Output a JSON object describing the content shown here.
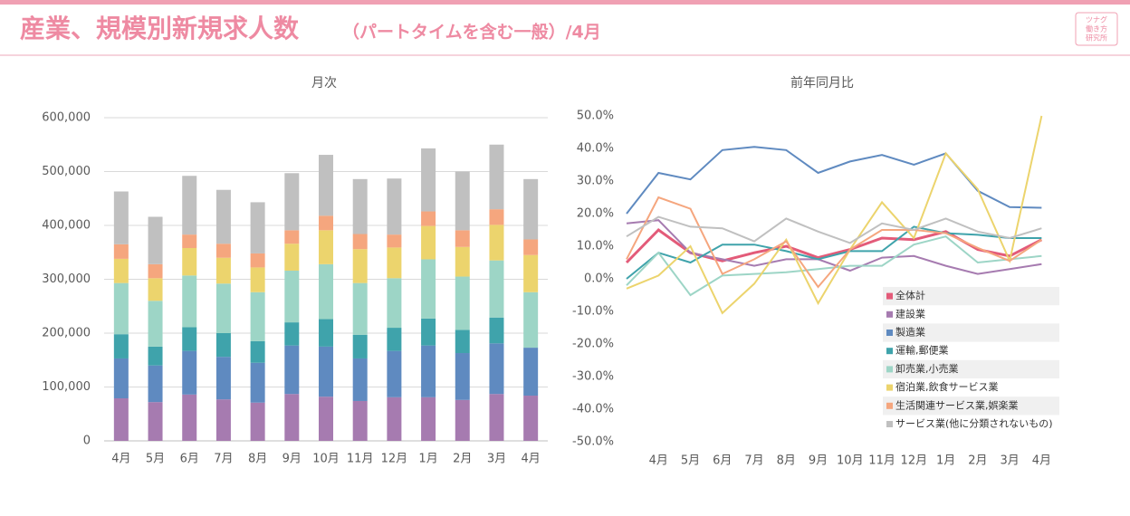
{
  "header": {
    "title": "産業、規模別新規求人数",
    "subtitle": "（パートタイムを含む一般）/4月",
    "logo": [
      "ツナグ",
      "働き方",
      "研究所"
    ]
  },
  "chart_data": [
    {
      "type": "stacked_bar",
      "title": "月次",
      "categories": [
        "4月",
        "5月",
        "6月",
        "7月",
        "8月",
        "9月",
        "10月",
        "11月",
        "12月",
        "1月",
        "2月",
        "3月",
        "4月"
      ],
      "series": [
        {
          "color": "#a67bb0",
          "values": [
            79000,
            72000,
            86000,
            77000,
            71000,
            87000,
            82000,
            74000,
            81000,
            81000,
            76000,
            87000,
            84000
          ]
        },
        {
          "color": "#5f8ac0",
          "values": [
            74000,
            68000,
            81000,
            79000,
            74000,
            90000,
            93000,
            79000,
            86000,
            96000,
            87000,
            94000,
            89000
          ]
        },
        {
          "color": "#3fa3ab",
          "values": [
            45000,
            35000,
            44000,
            44000,
            40000,
            43000,
            51000,
            44000,
            43000,
            50000,
            43000,
            48000,
            null
          ]
        },
        {
          "color": "#9dd5c6",
          "values": [
            95000,
            85000,
            96000,
            92000,
            91000,
            96000,
            102000,
            96000,
            92000,
            110000,
            99000,
            106000,
            103000
          ]
        },
        {
          "color": "#ecd46d",
          "values": [
            45000,
            42000,
            51000,
            48000,
            46000,
            50000,
            63000,
            63000,
            57000,
            62000,
            55000,
            66000,
            69000
          ]
        },
        {
          "color": "#f5a67e",
          "values": [
            27000,
            26000,
            25000,
            26000,
            26000,
            25000,
            27000,
            28000,
            24000,
            27000,
            31000,
            29000,
            29000
          ]
        },
        {
          "color": "#c0c0c0",
          "values": [
            98000,
            88000,
            109000,
            100000,
            95000,
            106000,
            113000,
            102000,
            104000,
            117000,
            109000,
            120000,
            112000
          ]
        }
      ],
      "ylim": [
        0,
        600000
      ],
      "yticks": [
        0,
        {
          "value": 100000,
          "label": "100,000"
        },
        {
          "value": 200000,
          "label": "200,000"
        },
        {
          "value": 300000,
          "label": "300,000"
        },
        {
          "value": 400000,
          "label": "400,000"
        },
        {
          "value": 500000,
          "label": "500,000"
        },
        {
          "value": 600000,
          "label": "600,000"
        }
      ],
      "grid": true
    },
    {
      "type": "line",
      "title": "前年同月比",
      "categories": [
        null,
        "4月",
        "5月",
        "6月",
        "7月",
        "8月",
        "9月",
        "10月",
        "11月",
        "12月",
        "1月",
        "2月",
        "3月",
        "4月"
      ],
      "series": [
        {
          "name": "全体計",
          "color": "#e35b79",
          "values": [
            5,
            15,
            8,
            5.5,
            8,
            10,
            6.5,
            9,
            12.5,
            12,
            14.5,
            9,
            7,
            12
          ]
        },
        {
          "name": "建設業",
          "color": "#a67bb0",
          "values": [
            17,
            18,
            8,
            6,
            4,
            6,
            6,
            2.5,
            6.5,
            7,
            4,
            1.5,
            3,
            4.5
          ]
        },
        {
          "name": "製造業",
          "color": "#5f8ac0",
          "values": [
            20,
            32.5,
            30.5,
            39.5,
            40.5,
            39.5,
            32.5,
            36,
            38,
            35,
            38.5,
            27,
            22,
            21.8
          ]
        },
        {
          "name": "運輸,郵便業",
          "color": "#3fa3ab",
          "values": [
            0,
            8,
            5,
            10.5,
            10.5,
            8.5,
            6,
            8.5,
            8.5,
            16,
            14,
            13.5,
            12.5,
            12.5
          ]
        },
        {
          "name": "卸売業,小売業",
          "color": "#9dd5c6",
          "values": [
            -2,
            8,
            -5,
            1,
            1.5,
            2,
            3,
            4,
            4,
            10.5,
            13,
            5,
            6,
            7
          ]
        },
        {
          "name": "宿泊業,飲食サービス業",
          "color": "#ecd46d",
          "values": [
            -3,
            1,
            10,
            -10.5,
            -1.5,
            12,
            -7.5,
            9,
            23.5,
            12.5,
            38.5,
            27.5,
            5.5,
            50
          ]
        },
        {
          "name": "生活関連サービス業,娯楽業",
          "color": "#f5a67e",
          "values": [
            6,
            25,
            21.5,
            1.5,
            6,
            11.5,
            -2.5,
            9,
            15,
            15,
            14,
            9.5,
            5.5,
            12
          ]
        },
        {
          "name": "サービス業(他に分類されないもの)",
          "color": "#c0c0c0",
          "values": [
            13,
            19,
            16,
            15.5,
            11.5,
            18.5,
            14.5,
            11,
            17,
            15,
            18.5,
            14.5,
            12.5,
            15.5
          ]
        }
      ],
      "ylim": [
        -50,
        50
      ],
      "yticks": [
        {
          "value": -50,
          "label": "-50.0%"
        },
        {
          "value": -40,
          "label": "-40.0%"
        },
        {
          "value": -30,
          "label": "-30.0%"
        },
        {
          "value": -20,
          "label": "-20.0%"
        },
        {
          "value": -10,
          "label": "-10.0%"
        },
        {
          "value": 0,
          "label": "0.0%"
        },
        {
          "value": 10,
          "label": "10.0%"
        },
        {
          "value": 20,
          "label": "20.0%"
        },
        {
          "value": 30,
          "label": "30.0%"
        },
        {
          "value": 40,
          "label": "40.0%"
        },
        {
          "value": 50,
          "label": "50.0%"
        }
      ],
      "grid": false,
      "legend": "lower right"
    }
  ]
}
